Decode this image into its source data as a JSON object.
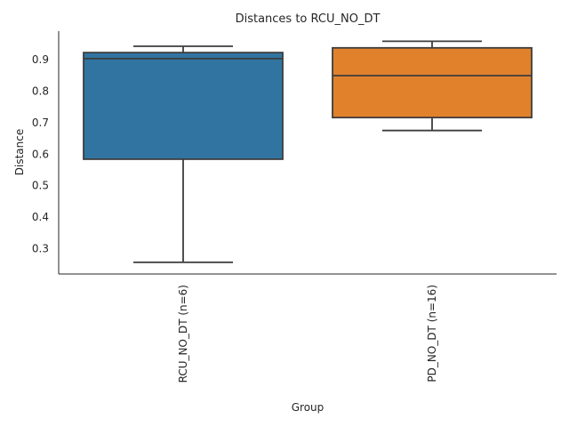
{
  "chart_data": {
    "type": "box",
    "title": "Distances to RCU_NO_DT",
    "xlabel": "Group",
    "ylabel": "Distance",
    "ylim": [
      0.22,
      0.99
    ],
    "yticks": [
      0.3,
      0.4,
      0.5,
      0.6,
      0.7,
      0.8,
      0.9
    ],
    "yticklabels": [
      "0.3",
      "0.4",
      "0.5",
      "0.6",
      "0.7",
      "0.8",
      "0.9"
    ],
    "categories": [
      "RCU_NO_DT (n=6)",
      "PD_NO_DT (n=16)"
    ],
    "grid": false,
    "boxes": [
      {
        "label": "RCU_NO_DT (n=6)",
        "whisker_low": 0.257,
        "q1": 0.584,
        "median": 0.903,
        "q3": 0.922,
        "whisker_high": 0.942,
        "color": "#3274a1"
      },
      {
        "label": "PD_NO_DT (n=16)",
        "whisker_low": 0.675,
        "q1": 0.716,
        "median": 0.849,
        "q3": 0.937,
        "whisker_high": 0.958,
        "color": "#e1812c"
      }
    ]
  }
}
